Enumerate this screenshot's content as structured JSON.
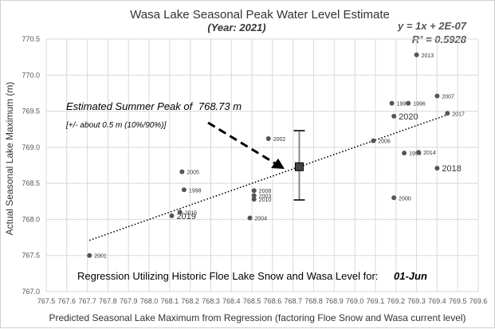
{
  "chart_data": {
    "type": "scatter",
    "title": "Wasa Lake Seasonal Peak Water Level Estimate",
    "subtitle": "(Year: 2021)",
    "xlabel": "Predicted Seasonal Lake Maximum from Regression (factoring Floe Snow and Wasa current level)",
    "ylabel": "Actual Seasonal Lake Maximum (m)",
    "xlim": [
      767.5,
      769.6
    ],
    "ylim": [
      767.0,
      770.5
    ],
    "xticks": [
      "767.5",
      "767.6",
      "767.7",
      "767.8",
      "767.9",
      "768.0",
      "768.1",
      "768.2",
      "768.3",
      "768.4",
      "768.5",
      "768.6",
      "768.7",
      "768.8",
      "768.9",
      "769.0",
      "769.1",
      "769.2",
      "769.3",
      "769.4",
      "769.5",
      "769.6"
    ],
    "yticks": [
      "767.0",
      "767.5",
      "768.0",
      "768.5",
      "769.0",
      "769.5",
      "770.0",
      "770.5"
    ],
    "equation": "y = 1x + 2E-07",
    "r_squared": "R² = 0.5928",
    "points": [
      {
        "label": "2001",
        "x": 767.71,
        "y": 767.5
      },
      {
        "label": "2019",
        "x": 768.11,
        "y": 768.05,
        "big": true
      },
      {
        "label": "2015",
        "x": 768.15,
        "y": 768.1
      },
      {
        "label": "1998",
        "x": 768.17,
        "y": 768.41
      },
      {
        "label": "2005",
        "x": 768.16,
        "y": 768.66
      },
      {
        "label": "2004",
        "x": 768.49,
        "y": 768.02
      },
      {
        "label": "2008",
        "x": 768.51,
        "y": 768.4
      },
      {
        "label": "2003",
        "x": 768.51,
        "y": 768.33
      },
      {
        "label": "2010",
        "x": 768.51,
        "y": 768.28
      },
      {
        "label": "2002",
        "x": 768.58,
        "y": 769.12
      },
      {
        "label": "2000",
        "x": 769.19,
        "y": 768.3
      },
      {
        "label": "2006",
        "x": 769.09,
        "y": 769.09
      },
      {
        "label": "2020",
        "x": 769.19,
        "y": 769.43,
        "big": true
      },
      {
        "label": "1999",
        "x": 769.24,
        "y": 768.92
      },
      {
        "label": "2014",
        "x": 769.31,
        "y": 768.93
      },
      {
        "label": "1997",
        "x": 769.18,
        "y": 769.61
      },
      {
        "label": "1996",
        "x": 769.26,
        "y": 769.61
      },
      {
        "label": "2013",
        "x": 769.3,
        "y": 770.28
      },
      {
        "label": "2007",
        "x": 769.4,
        "y": 769.71
      },
      {
        "label": "2017",
        "x": 769.45,
        "y": 769.47
      },
      {
        "label": "2018",
        "x": 769.4,
        "y": 768.71,
        "big": true
      }
    ],
    "trendline": {
      "x1": 767.71,
      "y1": 767.71,
      "x2": 769.45,
      "y2": 769.45
    },
    "estimate": {
      "x": 768.73,
      "y": 768.73,
      "low": 768.27,
      "high": 769.23
    }
  },
  "annotation": {
    "line1": "Estimated Summer Peak of",
    "value": "768.73 m",
    "line2": "[+/- about 0.5 m  (10%/90%)]"
  },
  "footer": {
    "text": "Regression Utilizing Historic Floe Lake Snow and Wasa Level for:",
    "date": "01-Jun"
  }
}
